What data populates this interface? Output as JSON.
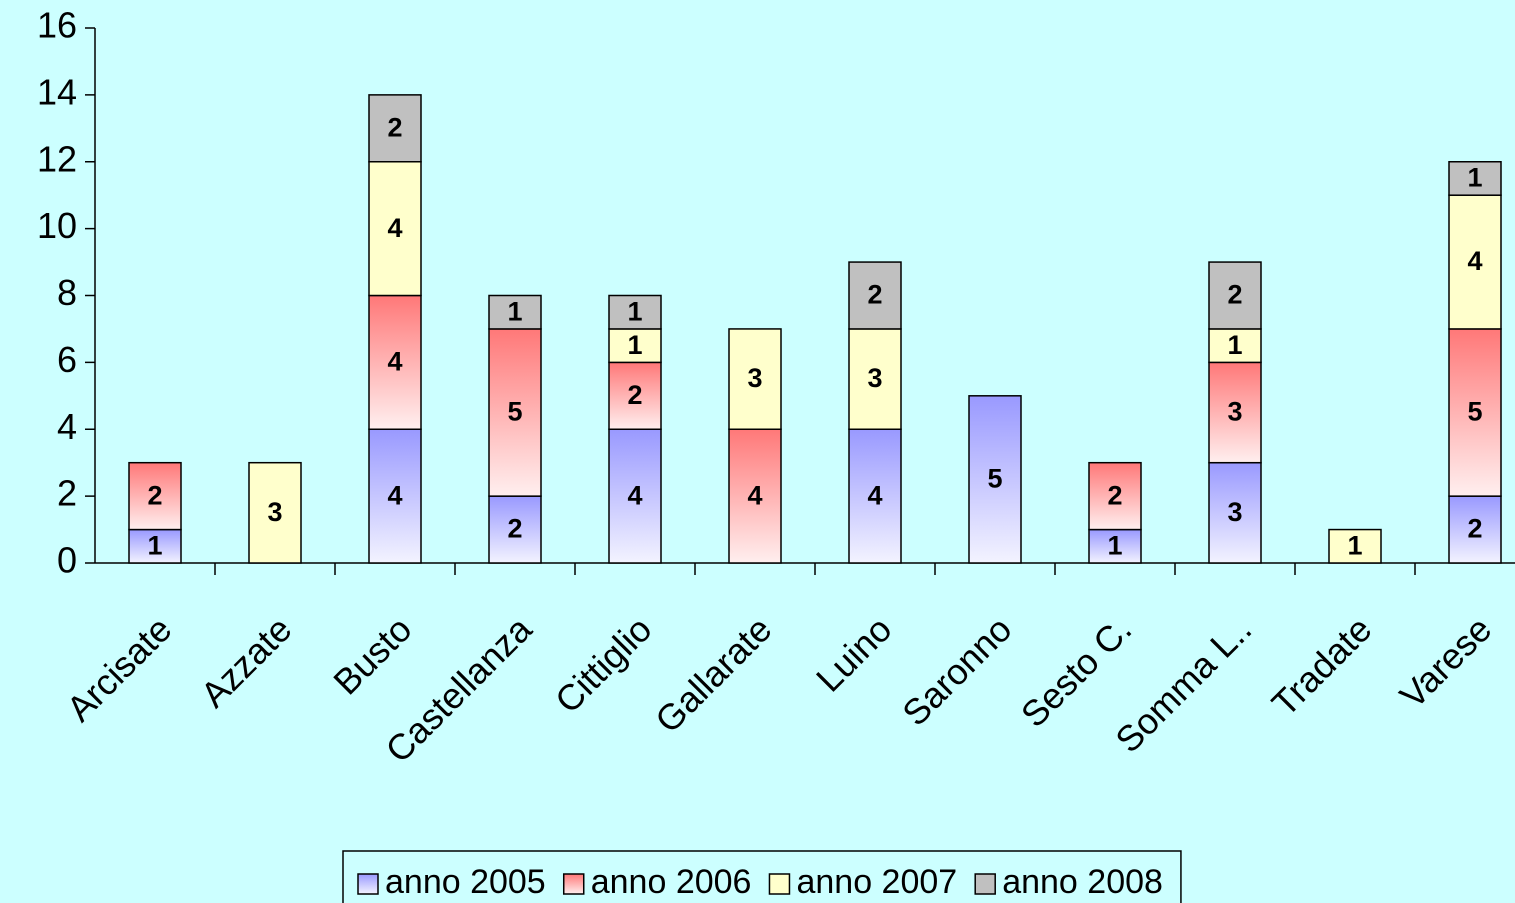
{
  "chart_data": {
    "type": "stacked_bar",
    "categories": [
      "Arcisate",
      "Azzate",
      "Busto",
      "Castellanza",
      "Cittiglio",
      "Gallarate",
      "Luino",
      "Saronno",
      "Sesto C.",
      "Somma L..",
      "Tradate",
      "Varese"
    ],
    "series": [
      {
        "name": "anno 2005",
        "color": "#9999ff",
        "fill_style": "gradient",
        "values": [
          1,
          null,
          4,
          2,
          4,
          null,
          4,
          5,
          1,
          3,
          null,
          2
        ]
      },
      {
        "name": "anno 2006",
        "color": "#ff7878",
        "fill_style": "gradient",
        "values": [
          2,
          null,
          4,
          5,
          2,
          4,
          null,
          null,
          2,
          3,
          null,
          5
        ]
      },
      {
        "name": "anno 2007",
        "color": "#ffffcc",
        "fill_style": "solid",
        "values": [
          null,
          3,
          4,
          null,
          1,
          3,
          3,
          null,
          null,
          1,
          1,
          4
        ]
      },
      {
        "name": "anno 2008",
        "color": "#c0c0c0",
        "fill_style": "solid",
        "values": [
          null,
          null,
          2,
          1,
          1,
          null,
          2,
          null,
          null,
          2,
          null,
          1
        ]
      }
    ],
    "ylim": [
      0,
      16
    ],
    "yticks": [
      0,
      2,
      4,
      6,
      8,
      10,
      12,
      14,
      16
    ],
    "legend": "bottom"
  }
}
